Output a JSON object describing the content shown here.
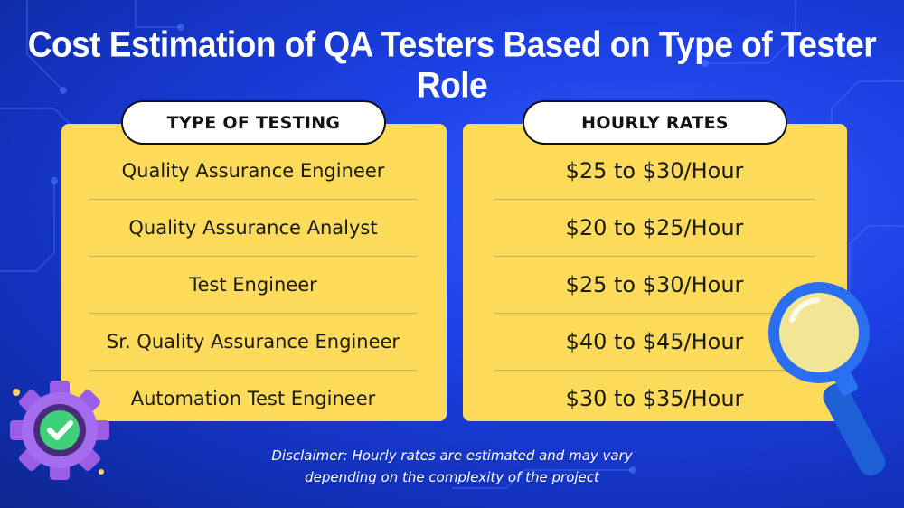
{
  "title": "Cost Estimation of QA Testers Based on Type of Tester Role",
  "columns": {
    "left_header": "TYPE OF TESTING",
    "right_header": "HOURLY RATES"
  },
  "rows": [
    {
      "role": "Quality Assurance Engineer",
      "rate": "$25 to $30/Hour"
    },
    {
      "role": "Quality Assurance Analyst",
      "rate": "$20 to $25/Hour"
    },
    {
      "role": "Test Engineer",
      "rate": "$25 to $30/Hour"
    },
    {
      "role": "Sr. Quality Assurance Engineer",
      "rate": "$40 to $45/Hour"
    },
    {
      "role": "Automation Test Engineer",
      "rate": "$30 to $35/Hour"
    }
  ],
  "disclaimer": {
    "line1": "Disclaimer: Hourly rates are estimated and may vary",
    "line2": "depending on the complexity of the project"
  },
  "colors": {
    "background": "#1b3fe0",
    "panel": "#fddb5a",
    "pill": "#ffffff",
    "text": "#1a1a1a"
  },
  "icons": [
    "gear-check-icon",
    "magnifying-glass-icon"
  ]
}
